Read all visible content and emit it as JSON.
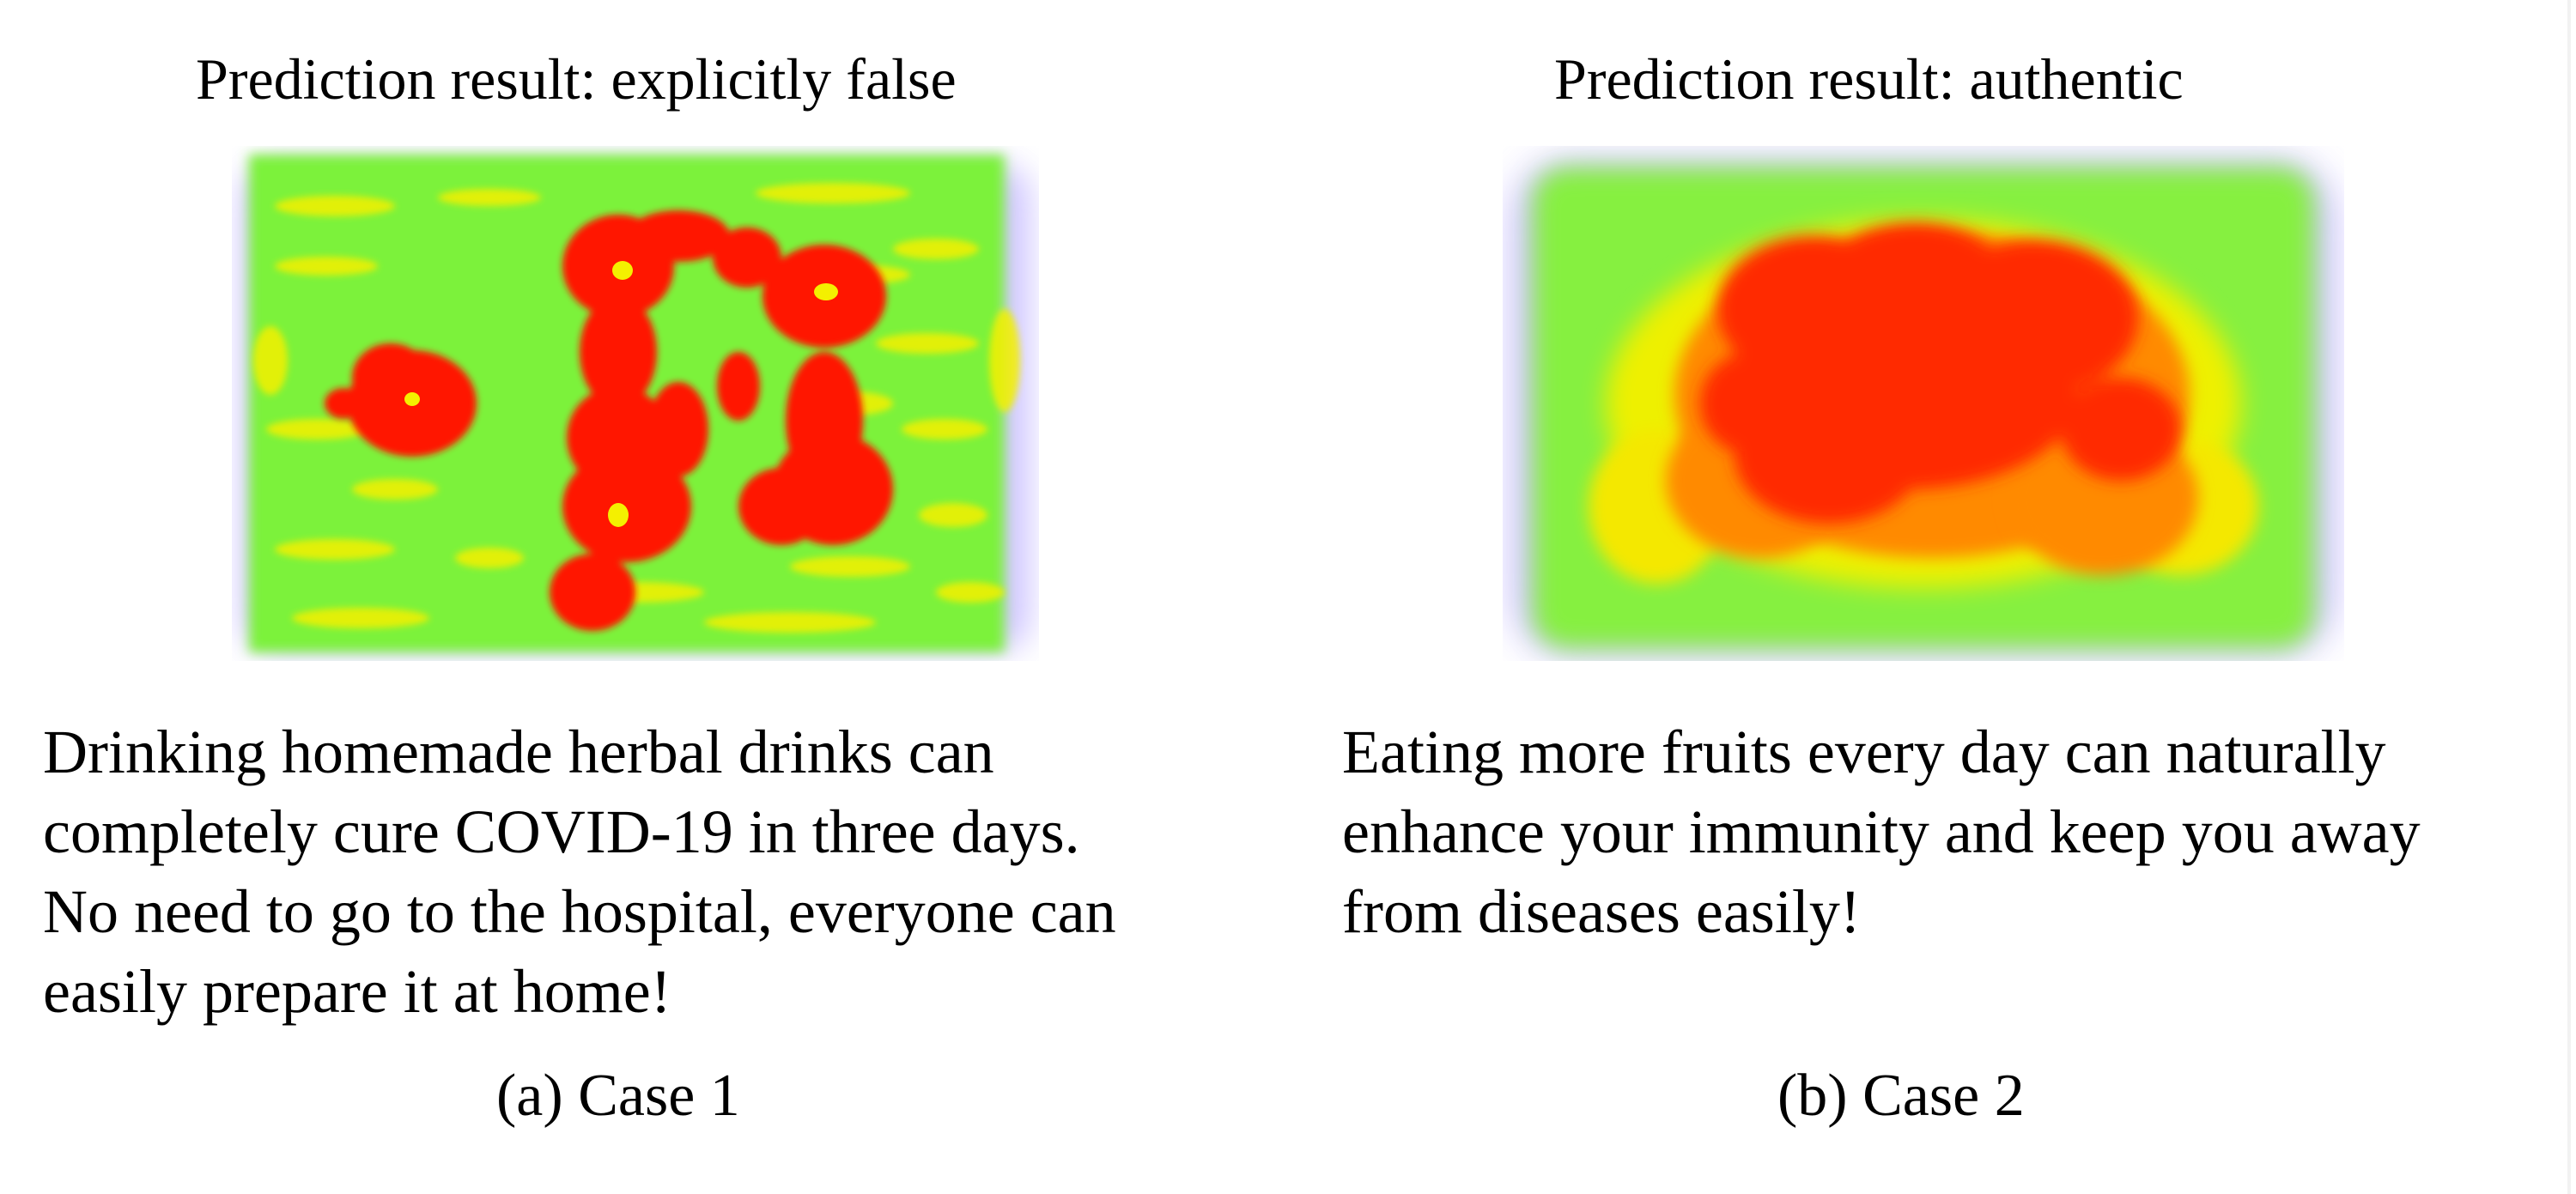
{
  "cases": [
    {
      "prediction": "Prediction result: explicitly false",
      "claim_lines": [
        "Drinking homemade herbal drinks can",
        "completely cure COVID-19 in three days.",
        "No need to go to the hospital, everyone can",
        "easily prepare it at home!"
      ],
      "caption": "(a) Case 1"
    },
    {
      "prediction": "Prediction result: authentic",
      "claim_lines": [
        "Eating more fruits every day can naturally",
        "enhance your immunity and keep you away",
        "from diseases easily!"
      ],
      "caption": "(b) Case 2"
    }
  ],
  "colors": {
    "heat_high": "#ff1a00",
    "heat_mid": "#ffee00",
    "heat_low": "#66ff33",
    "halo": "#9a8cff"
  }
}
